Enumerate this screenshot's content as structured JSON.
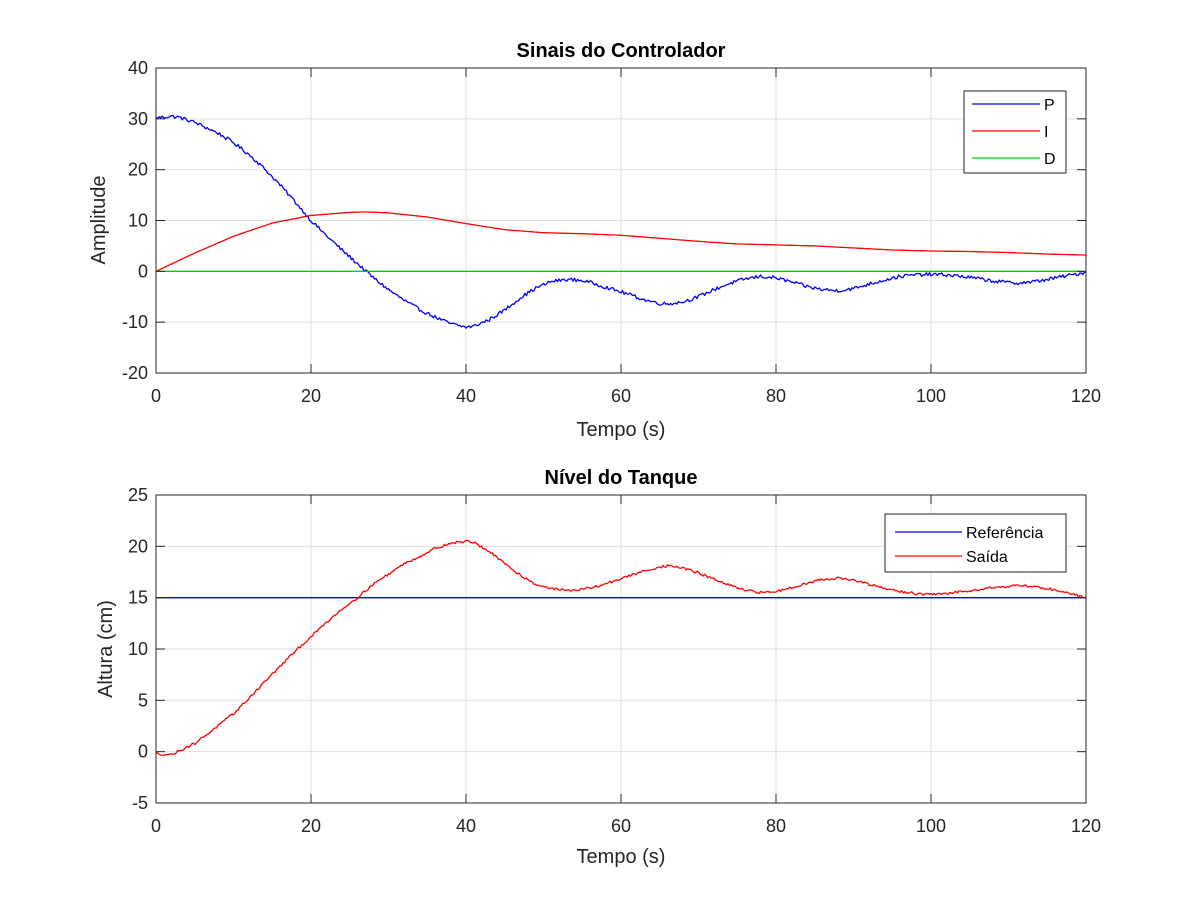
{
  "chart_data": [
    {
      "type": "line",
      "title": "Sinais do Controlador",
      "xlabel": "Tempo (s)",
      "ylabel": "Amplitude",
      "xlim": [
        0,
        120
      ],
      "ylim": [
        -20,
        40
      ],
      "xticks": [
        "0",
        "20",
        "40",
        "60",
        "80",
        "100",
        "120"
      ],
      "yticks": [
        "-20",
        "-10",
        "0",
        "10",
        "20",
        "30",
        "40"
      ],
      "grid": true,
      "legend_position": "top-right",
      "series": [
        {
          "name": "P",
          "color": "#0000ff",
          "noise": 0.35,
          "x": [
            0,
            2,
            3,
            5,
            8,
            10,
            12,
            14,
            16,
            18,
            20,
            22,
            24,
            26,
            28,
            30,
            32,
            34,
            36,
            38,
            40,
            41,
            43,
            45,
            47,
            49,
            51,
            53,
            55,
            57,
            59,
            61,
            63,
            65,
            66,
            68,
            70,
            72,
            74,
            76,
            78,
            80,
            82,
            84,
            86,
            88,
            90,
            92,
            94,
            96,
            98,
            100,
            102,
            104,
            106,
            108,
            110,
            111,
            113,
            115,
            117,
            120
          ],
          "y": [
            30.2,
            30.5,
            30.3,
            29.3,
            27.2,
            25.3,
            23.0,
            20.2,
            17.0,
            13.6,
            10.0,
            7.0,
            4.2,
            1.5,
            -1.2,
            -3.6,
            -5.7,
            -7.5,
            -9.0,
            -10.3,
            -11.0,
            -10.8,
            -9.5,
            -7.6,
            -5.2,
            -3.3,
            -2.0,
            -1.6,
            -1.8,
            -2.6,
            -3.6,
            -4.5,
            -5.6,
            -6.3,
            -6.4,
            -6.0,
            -5.0,
            -3.6,
            -2.4,
            -1.5,
            -1.0,
            -1.3,
            -2.1,
            -3.0,
            -3.6,
            -3.8,
            -3.4,
            -2.5,
            -1.7,
            -1.0,
            -0.7,
            -0.6,
            -0.7,
            -1.0,
            -1.4,
            -1.9,
            -2.2,
            -2.3,
            -2.1,
            -1.6,
            -1.0,
            -0.2
          ]
        },
        {
          "name": "I",
          "color": "#ff0000",
          "noise": 0,
          "x": [
            0,
            5,
            10,
            15,
            20,
            25,
            27,
            30,
            35,
            40,
            45,
            50,
            55,
            60,
            65,
            70,
            75,
            80,
            85,
            90,
            95,
            100,
            105,
            110,
            115,
            120
          ],
          "y": [
            0,
            3.6,
            6.9,
            9.5,
            11.0,
            11.6,
            11.7,
            11.5,
            10.7,
            9.4,
            8.2,
            7.6,
            7.4,
            7.1,
            6.5,
            5.9,
            5.4,
            5.2,
            5.0,
            4.6,
            4.2,
            4.0,
            3.9,
            3.7,
            3.4,
            3.2
          ]
        },
        {
          "name": "D",
          "color": "#00d000",
          "noise": 0,
          "x": [
            0,
            120
          ],
          "y": [
            0,
            0
          ]
        }
      ]
    },
    {
      "type": "line",
      "title": "Nível do Tanque",
      "xlabel": "Tempo (s)",
      "ylabel": "Altura (cm)",
      "xlim": [
        0,
        120
      ],
      "ylim": [
        -5,
        25
      ],
      "xticks": [
        "0",
        "20",
        "40",
        "60",
        "80",
        "100",
        "120"
      ],
      "yticks": [
        "-5",
        "0",
        "5",
        "10",
        "15",
        "20",
        "25"
      ],
      "grid": true,
      "legend_position": "top-right",
      "series": [
        {
          "name": "Referência",
          "color": "#0000ff",
          "noise": 0,
          "x": [
            0,
            120
          ],
          "y": [
            15,
            15
          ]
        },
        {
          "name": "Saída",
          "color": "#ff0000",
          "noise": 0.12,
          "x": [
            0,
            2,
            3,
            5,
            8,
            10,
            12,
            14,
            16,
            18,
            20,
            22,
            24,
            26,
            28,
            30,
            32,
            34,
            36,
            38,
            40,
            41,
            43,
            45,
            47,
            49,
            51,
            53,
            55,
            57,
            59,
            61,
            63,
            65,
            66,
            68,
            70,
            72,
            74,
            76,
            78,
            80,
            82,
            84,
            86,
            88,
            90,
            92,
            94,
            96,
            98,
            100,
            102,
            104,
            106,
            108,
            110,
            111,
            113,
            115,
            117,
            120
          ],
          "y": [
            -0.2,
            -0.3,
            0.1,
            0.8,
            2.5,
            3.7,
            5.2,
            6.8,
            8.3,
            9.8,
            11.2,
            12.6,
            13.9,
            15.0,
            16.3,
            17.3,
            18.3,
            19.0,
            19.8,
            20.3,
            20.5,
            20.4,
            19.5,
            18.3,
            17.2,
            16.3,
            15.9,
            15.7,
            15.8,
            16.1,
            16.6,
            17.1,
            17.6,
            18.0,
            18.1,
            17.9,
            17.4,
            16.8,
            16.2,
            15.7,
            15.5,
            15.6,
            16.0,
            16.4,
            16.8,
            16.9,
            16.7,
            16.3,
            15.9,
            15.6,
            15.4,
            15.3,
            15.4,
            15.6,
            15.8,
            16.0,
            16.1,
            16.2,
            16.1,
            15.9,
            15.6,
            15.0
          ]
        }
      ]
    }
  ]
}
